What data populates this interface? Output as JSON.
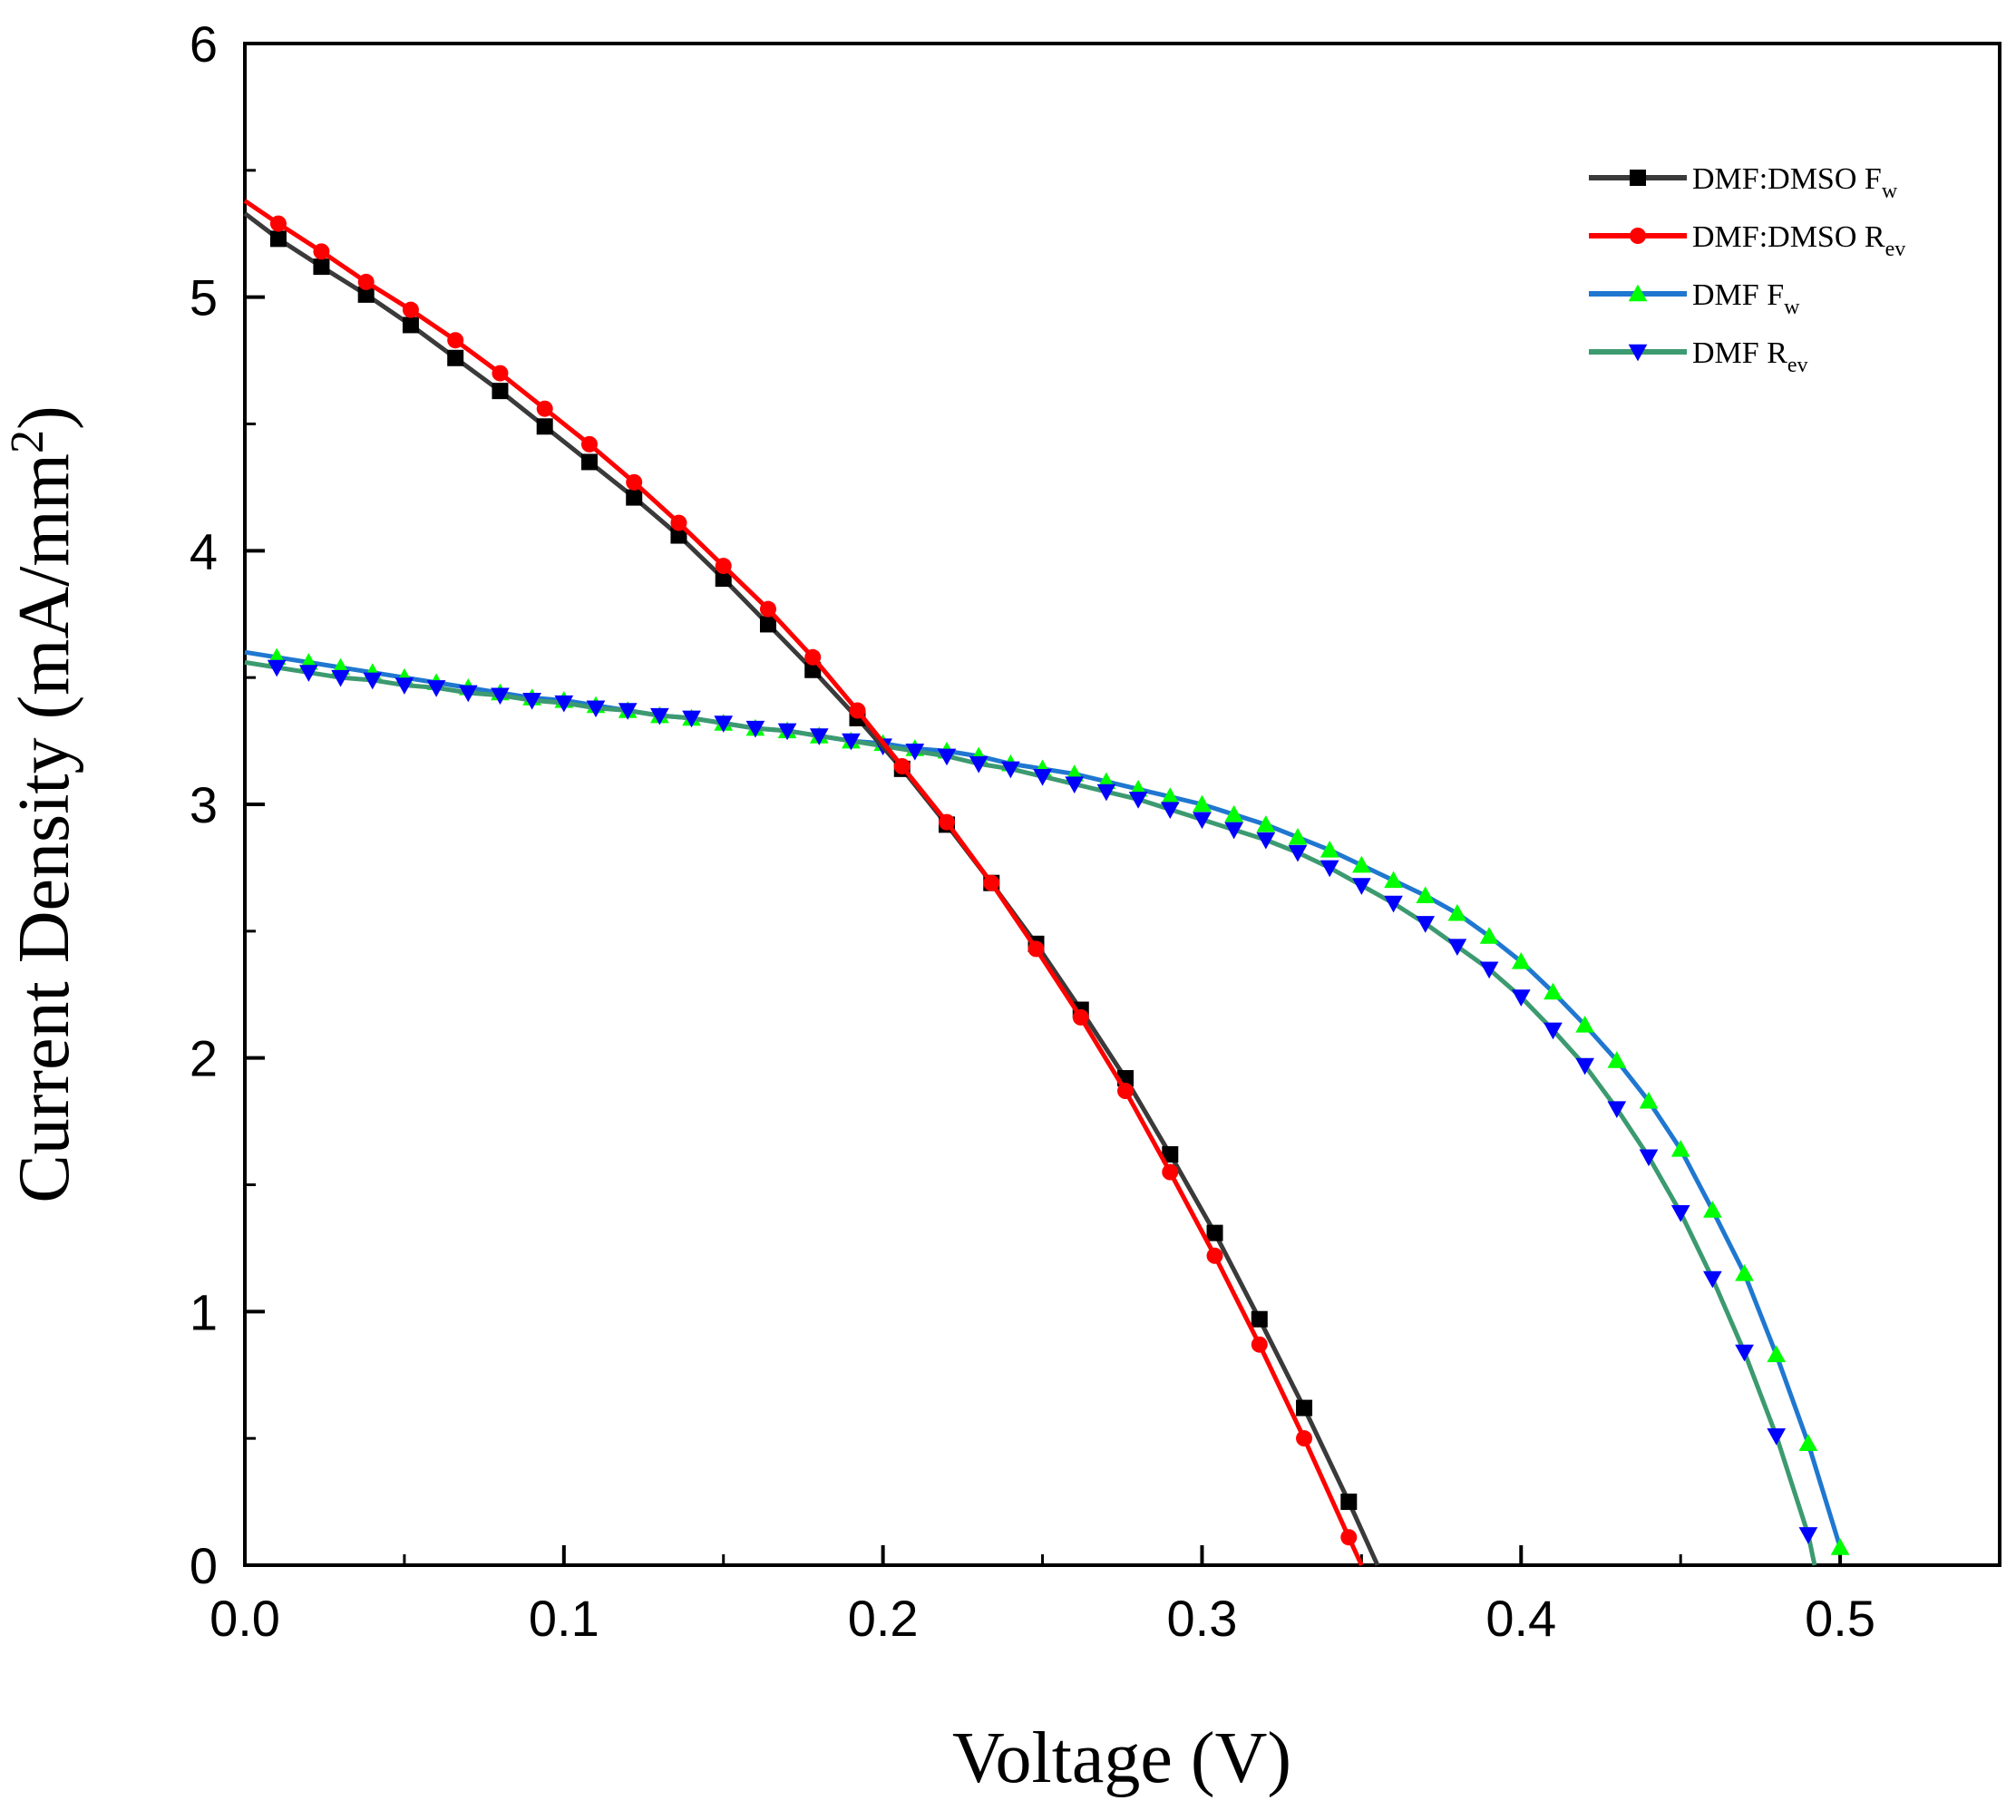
{
  "chart_data": {
    "type": "line",
    "xlabel": "Voltage (V)",
    "ylabel_main": "Current Density (mA/mm",
    "ylabel_sup": "2",
    "ylabel_close": ")",
    "xlim": [
      0.0,
      0.55
    ],
    "ylim": [
      0,
      6
    ],
    "xticks": [
      "0.0",
      "0.1",
      "0.2",
      "0.3",
      "0.4",
      "0.5"
    ],
    "xtick_values": [
      0.0,
      0.1,
      0.2,
      0.3,
      0.4,
      0.5
    ],
    "yticks": [
      "0",
      "1",
      "2",
      "3",
      "4",
      "5",
      "6"
    ],
    "ytick_values": [
      0,
      1,
      2,
      3,
      4,
      5,
      6
    ],
    "grid": false,
    "legend_position": "top-right",
    "series": [
      {
        "name": "DMF:DMSO Fw",
        "label_main": "DMF:DMSO F",
        "label_sub": "w",
        "line_color": "#3a3a3a",
        "marker_color": "#000000",
        "marker": "square",
        "x": [
          0.0,
          0.0105,
          0.024,
          0.038,
          0.052,
          0.066,
          0.08,
          0.094,
          0.108,
          0.122,
          0.136,
          0.15,
          0.164,
          0.178,
          0.192,
          0.206,
          0.22,
          0.234,
          0.248,
          0.262,
          0.276,
          0.29,
          0.304,
          0.318,
          0.332,
          0.346,
          0.355
        ],
        "y": [
          5.33,
          5.23,
          5.12,
          5.01,
          4.89,
          4.76,
          4.63,
          4.49,
          4.35,
          4.21,
          4.06,
          3.89,
          3.71,
          3.53,
          3.34,
          3.14,
          2.92,
          2.69,
          2.45,
          2.19,
          1.92,
          1.62,
          1.31,
          0.97,
          0.62,
          0.25,
          0.0
        ],
        "marker_start": 1,
        "marker_end": 25
      },
      {
        "name": "DMF:DMSO Rev",
        "label_main": "DMF:DMSO  R",
        "label_sub": "ev",
        "line_color": "#ff0000",
        "marker_color": "#ff0000",
        "marker": "circle",
        "x": [
          0.0,
          0.0105,
          0.024,
          0.038,
          0.052,
          0.066,
          0.08,
          0.094,
          0.108,
          0.122,
          0.136,
          0.15,
          0.164,
          0.178,
          0.192,
          0.206,
          0.22,
          0.234,
          0.248,
          0.262,
          0.276,
          0.29,
          0.304,
          0.318,
          0.332,
          0.346,
          0.35
        ],
        "y": [
          5.38,
          5.29,
          5.18,
          5.06,
          4.95,
          4.83,
          4.7,
          4.56,
          4.42,
          4.27,
          4.11,
          3.94,
          3.77,
          3.58,
          3.37,
          3.15,
          2.93,
          2.69,
          2.43,
          2.16,
          1.87,
          1.55,
          1.22,
          0.87,
          0.5,
          0.11,
          0.0
        ],
        "marker_start": 1,
        "marker_end": 25
      },
      {
        "name": "DMF Fw",
        "label_main": "DMF F",
        "label_sub": "w",
        "line_color": "#1f77d0",
        "marker_color": "#00ff00",
        "marker": "triangle-up",
        "x": [
          0.0,
          0.01,
          0.02,
          0.03,
          0.04,
          0.05,
          0.06,
          0.07,
          0.08,
          0.09,
          0.1,
          0.11,
          0.12,
          0.13,
          0.14,
          0.15,
          0.16,
          0.17,
          0.18,
          0.19,
          0.2,
          0.21,
          0.22,
          0.23,
          0.24,
          0.25,
          0.26,
          0.27,
          0.28,
          0.29,
          0.3,
          0.31,
          0.32,
          0.33,
          0.34,
          0.35,
          0.36,
          0.37,
          0.38,
          0.39,
          0.4,
          0.41,
          0.42,
          0.43,
          0.44,
          0.45,
          0.46,
          0.47,
          0.48,
          0.49,
          0.5
        ],
        "y": [
          3.6,
          3.58,
          3.56,
          3.54,
          3.52,
          3.5,
          3.48,
          3.46,
          3.44,
          3.42,
          3.41,
          3.39,
          3.37,
          3.35,
          3.34,
          3.32,
          3.3,
          3.29,
          3.27,
          3.25,
          3.24,
          3.22,
          3.21,
          3.19,
          3.16,
          3.14,
          3.12,
          3.09,
          3.06,
          3.03,
          3.0,
          2.96,
          2.92,
          2.87,
          2.82,
          2.76,
          2.7,
          2.64,
          2.57,
          2.48,
          2.38,
          2.26,
          2.13,
          1.99,
          1.83,
          1.64,
          1.4,
          1.15,
          0.83,
          0.48,
          0.07
        ],
        "marker_start": 1,
        "marker_end": 50
      },
      {
        "name": "DMF Rev",
        "label_main": "DMF R",
        "label_sub": "ev",
        "line_color": "#3c9a70",
        "marker_color": "#0000ff",
        "marker": "triangle-down",
        "x": [
          0.0,
          0.01,
          0.02,
          0.03,
          0.04,
          0.05,
          0.06,
          0.07,
          0.08,
          0.09,
          0.1,
          0.11,
          0.12,
          0.13,
          0.14,
          0.15,
          0.16,
          0.17,
          0.18,
          0.19,
          0.2,
          0.21,
          0.22,
          0.23,
          0.24,
          0.25,
          0.26,
          0.27,
          0.28,
          0.29,
          0.3,
          0.31,
          0.32,
          0.33,
          0.34,
          0.35,
          0.36,
          0.37,
          0.38,
          0.39,
          0.4,
          0.41,
          0.42,
          0.43,
          0.44,
          0.45,
          0.46,
          0.47,
          0.48,
          0.49,
          0.492
        ],
        "y": [
          3.56,
          3.54,
          3.52,
          3.5,
          3.49,
          3.47,
          3.46,
          3.44,
          3.43,
          3.41,
          3.4,
          3.38,
          3.37,
          3.35,
          3.34,
          3.32,
          3.3,
          3.29,
          3.27,
          3.25,
          3.23,
          3.21,
          3.19,
          3.16,
          3.14,
          3.11,
          3.08,
          3.05,
          3.02,
          2.98,
          2.94,
          2.9,
          2.86,
          2.81,
          2.75,
          2.68,
          2.61,
          2.53,
          2.44,
          2.35,
          2.24,
          2.11,
          1.97,
          1.8,
          1.61,
          1.39,
          1.13,
          0.84,
          0.51,
          0.12,
          0.0
        ],
        "marker_start": 1,
        "marker_end": 49
      }
    ]
  }
}
